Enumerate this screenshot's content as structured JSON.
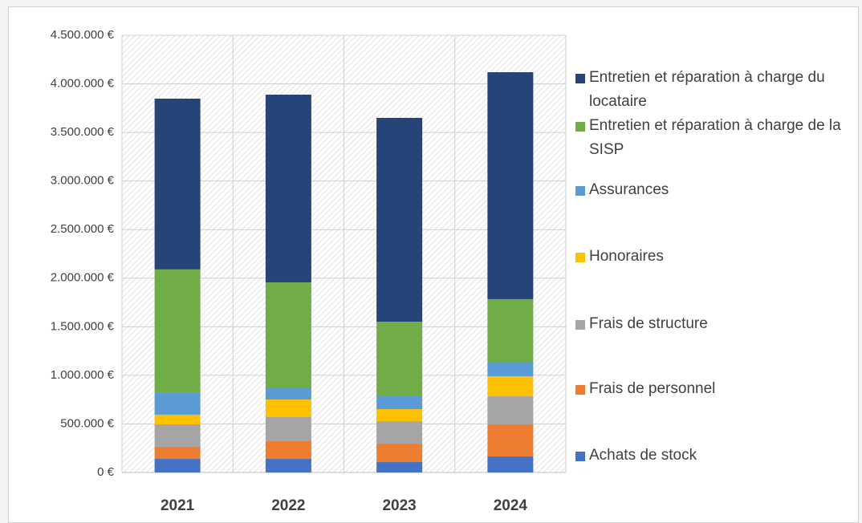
{
  "chart_data": {
    "type": "stacked_bar",
    "categories": [
      "2021",
      "2022",
      "2023",
      "2024"
    ],
    "series": [
      {
        "name": "Achats de stock",
        "color": "#4472c4",
        "values": [
          140000,
          140000,
          107000,
          165000
        ]
      },
      {
        "name": "Frais de personnel",
        "color": "#ed7d31",
        "values": [
          125000,
          182000,
          190000,
          330000
        ]
      },
      {
        "name": "Frais de structure",
        "color": "#a5a5a5",
        "values": [
          230000,
          248000,
          231000,
          289000
        ]
      },
      {
        "name": "Honoraires",
        "color": "#ffc000",
        "values": [
          100000,
          181000,
          124000,
          207000
        ]
      },
      {
        "name": "Assurances",
        "color": "#5b9bd5",
        "values": [
          223000,
          116000,
          141000,
          140000
        ]
      },
      {
        "name": "Entretien et réparation à charge de la SISP",
        "color": "#70ad47",
        "values": [
          1272000,
          1090000,
          759000,
          653000
        ]
      },
      {
        "name": "Entretien et réparation à charge du locataire",
        "color": "#264478",
        "values": [
          1758000,
          1932000,
          2098000,
          2336000
        ]
      }
    ],
    "ylim": [
      0,
      4500000
    ],
    "yticks": [
      {
        "value": 0,
        "label": "0 €"
      },
      {
        "value": 500000,
        "label": "500.000 €"
      },
      {
        "value": 1000000,
        "label": "1.000.000 €"
      },
      {
        "value": 1500000,
        "label": "1.500.000 €"
      },
      {
        "value": 2000000,
        "label": "2.000.000 €"
      },
      {
        "value": 2500000,
        "label": "2.500.000 €"
      },
      {
        "value": 3000000,
        "label": "3.000.000 €"
      },
      {
        "value": 3500000,
        "label": "3.500.000 €"
      },
      {
        "value": 4000000,
        "label": "4.000.000 €"
      },
      {
        "value": 4500000,
        "label": "4.500.000 €"
      }
    ],
    "grid": true,
    "legend": "right"
  }
}
